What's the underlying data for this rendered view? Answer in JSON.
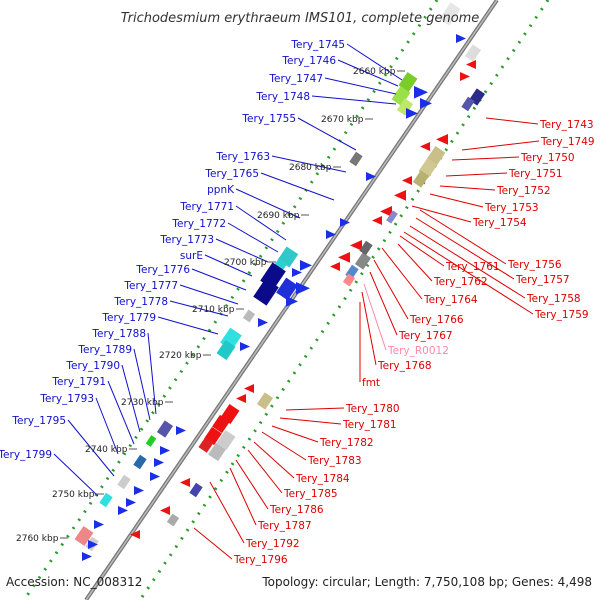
{
  "title": "Trichodesmium erythraeum IMS101, complete genome",
  "accession": "Accession: NC_008312",
  "topology": "Topology: circular; Length: 7,750,108 bp; Genes: 4,498",
  "colors": {
    "forward_label": "#1010cc",
    "reverse_label": "#dd0000",
    "rna_label": "#ff88aa",
    "backbone": "#999999",
    "tick_dot": "#2a9a2a"
  },
  "kbp_ticks": [
    "2660 kbp",
    "2670 kbp",
    "2680 kbp",
    "2690 kbp",
    "2700 kbp",
    "2710 kbp",
    "2720 kbp",
    "2730 kbp",
    "2740 kbp",
    "2750 kbp",
    "2760 kbp"
  ],
  "left_labels": [
    "Tery_1745",
    "Tery_1746",
    "Tery_1747",
    "Tery_1748",
    "Tery_1755",
    "Tery_1763",
    "Tery_1765",
    "ppnK",
    "Tery_1771",
    "Tery_1772",
    "Tery_1773",
    "surE",
    "Tery_1776",
    "Tery_1777",
    "Tery_1778",
    "Tery_1779",
    "Tery_1788",
    "Tery_1789",
    "Tery_1790",
    "Tery_1791",
    "Tery_1793",
    "Tery_1795",
    "Tery_1799"
  ],
  "right_labels": [
    "Tery_1743",
    "Tery_1749",
    "Tery_1750",
    "Tery_1751",
    "Tery_1752",
    "Tery_1753",
    "Tery_1754",
    "Tery_1756",
    "Tery_1757",
    "Tery_1758",
    "Tery_1759",
    "Tery_1761",
    "Tery_1762",
    "Tery_1764",
    "Tery_1766",
    "Tery_1767",
    "Tery_R0012",
    "Tery_1768",
    "fmt",
    "Tery_1780",
    "Tery_1781",
    "Tery_1782",
    "Tery_1783",
    "Tery_1784",
    "Tery_1785",
    "Tery_1786",
    "Tery_1787",
    "Tery_1792",
    "Tery_1796"
  ]
}
